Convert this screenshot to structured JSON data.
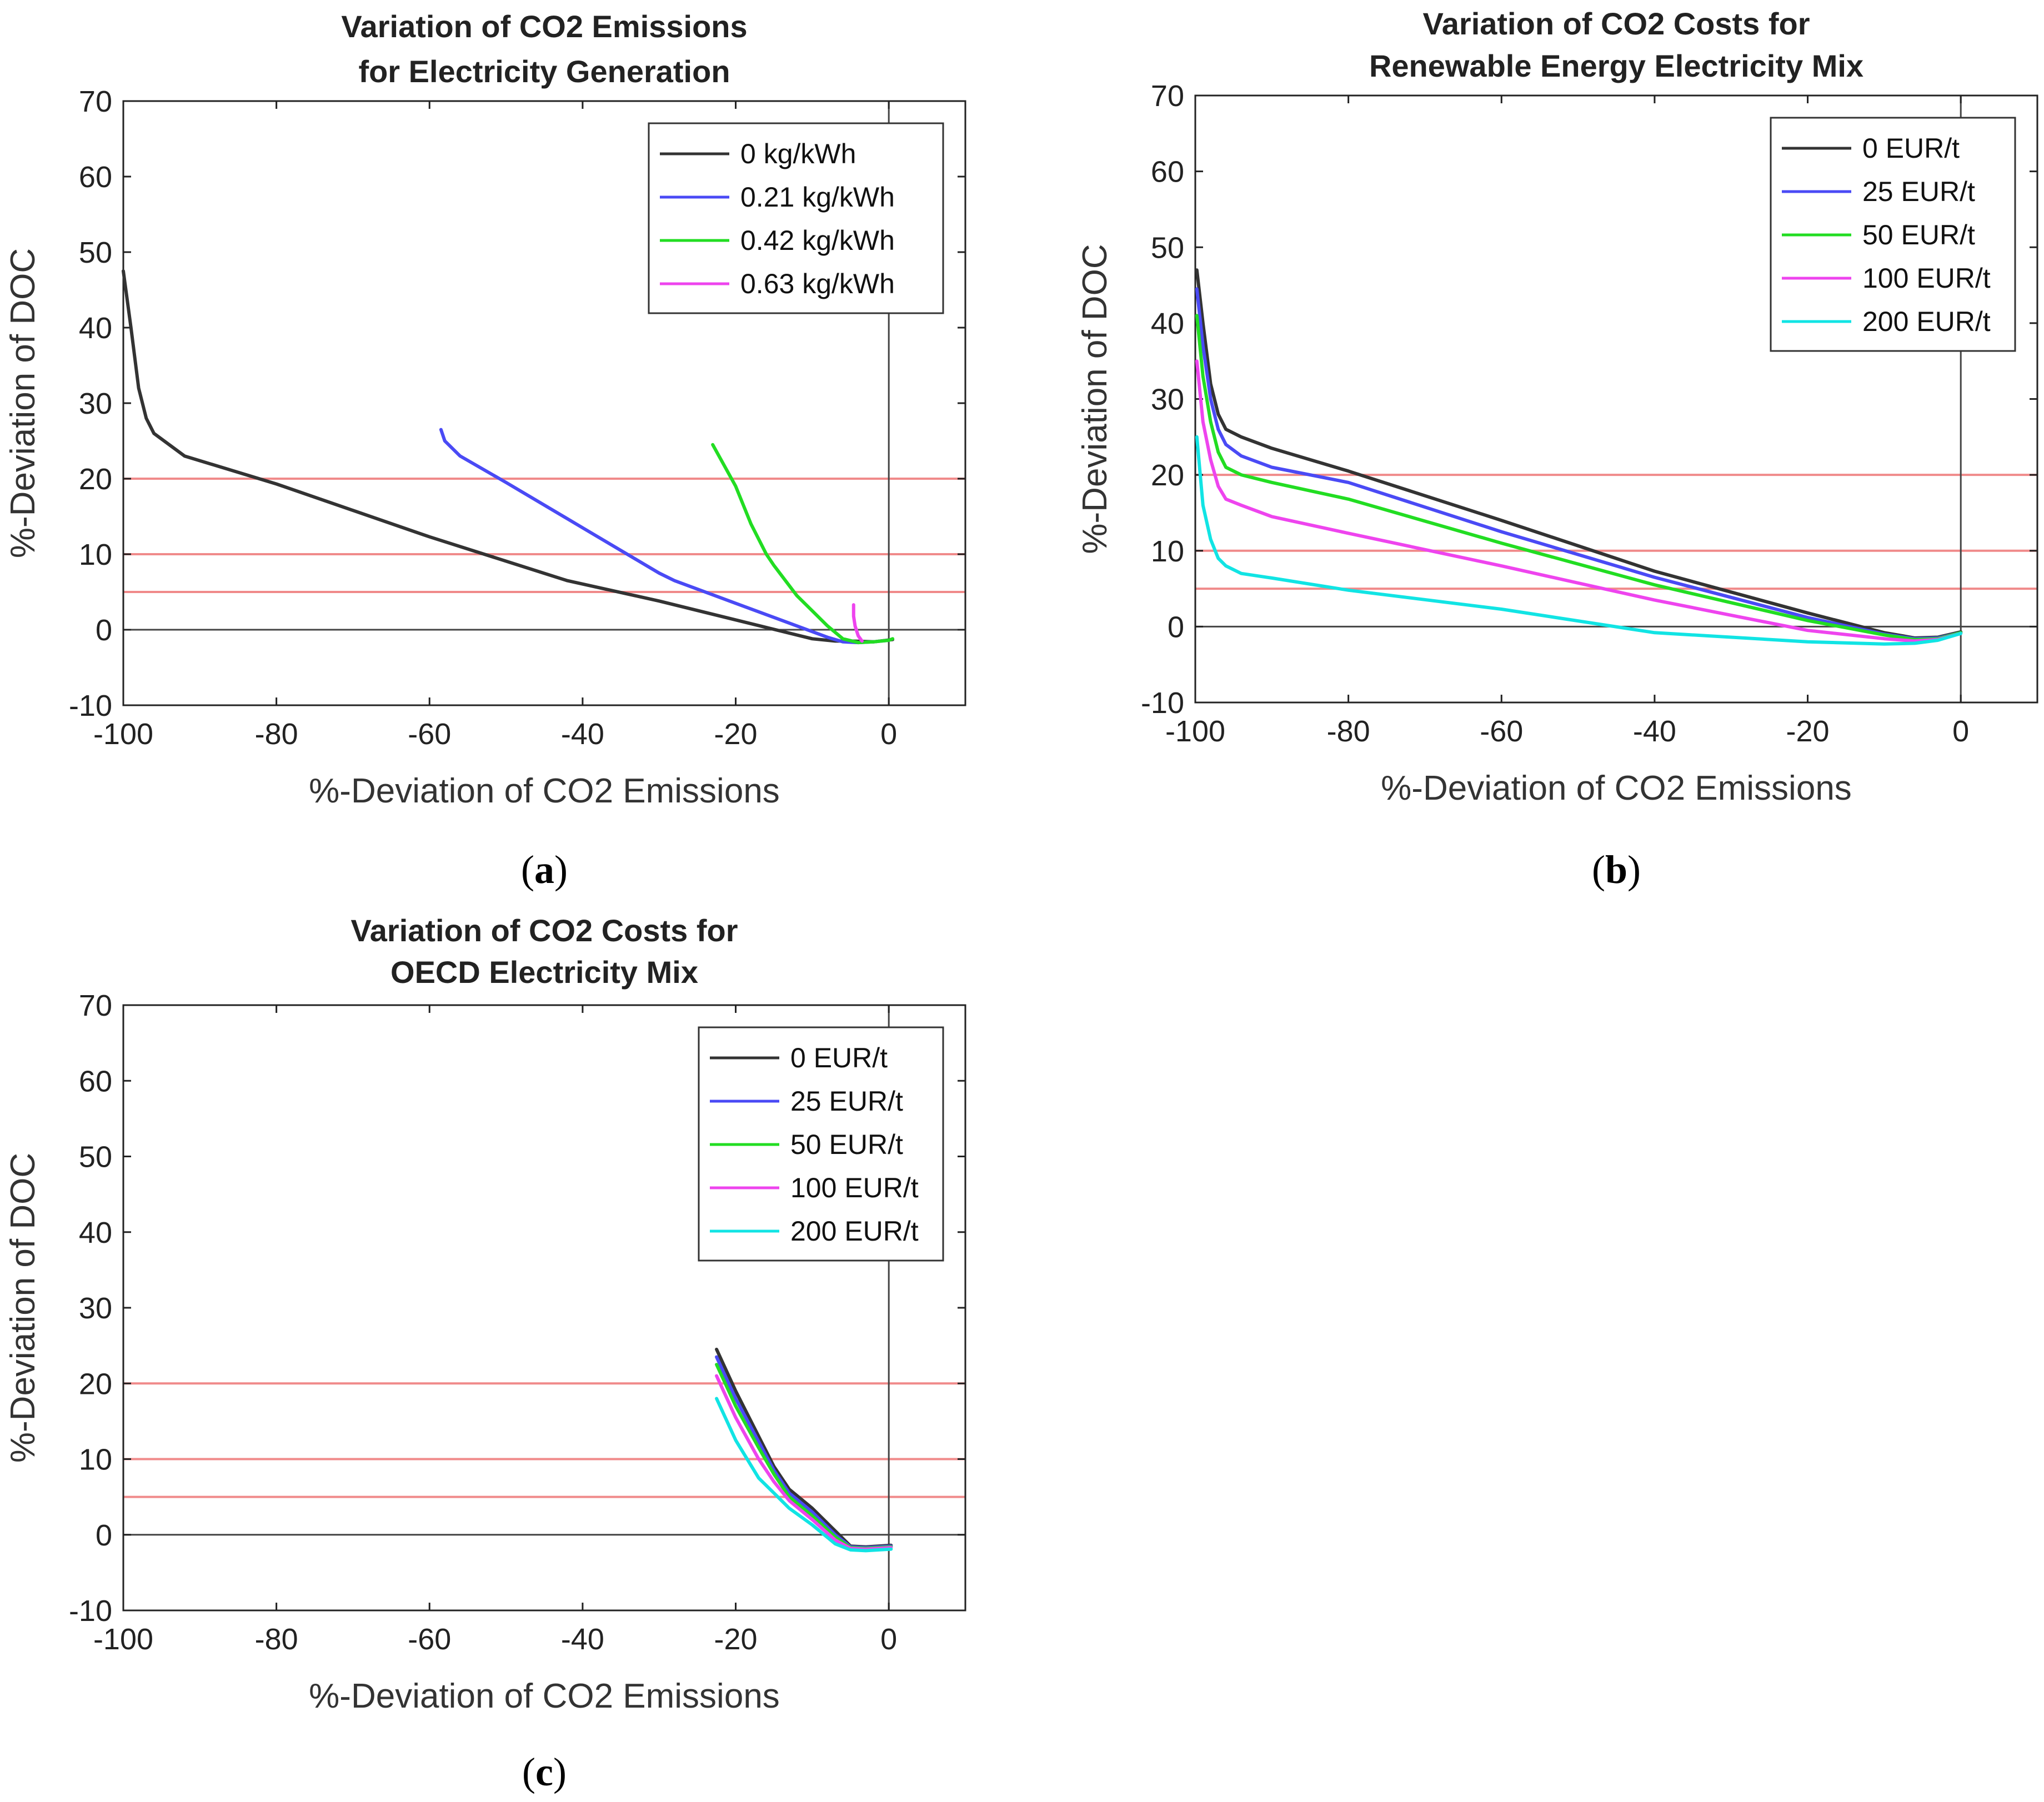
{
  "figure_labels": [
    "(a)",
    "(b)",
    "(c)"
  ],
  "colors": {
    "series": [
      "#333333",
      "#4a4af5",
      "#22dd22",
      "#ee44ee",
      "#11e4e4"
    ],
    "reference_lines": "#f08a8a",
    "axis": "#222222"
  },
  "chart_data": [
    {
      "id": "a",
      "type": "line",
      "caption": "(a)",
      "title": [
        "Variation of CO2 Emissions",
        "for Electricity Generation"
      ],
      "xlabel": "%-Deviation of CO2 Emissions",
      "ylabel": "%-Deviation of DOC",
      "xlim": [
        -100,
        10
      ],
      "ylim": [
        -10,
        70
      ],
      "xticks": [
        "-100",
        "-80",
        "-60",
        "-40",
        "-20",
        "0"
      ],
      "yticks": [
        "-10",
        "0",
        "10",
        "20",
        "30",
        "40",
        "50",
        "60",
        "70"
      ],
      "reference_lines_y": [
        5,
        10,
        20
      ],
      "zero_lines": {
        "x": 0,
        "y": 0
      },
      "legend_position": "top-right",
      "series": [
        {
          "name": "0 kg/kWh",
          "x": [
            -100,
            -99,
            -98,
            -97,
            -96,
            -92,
            -80,
            -60,
            -42,
            -30,
            -20,
            -10,
            -7,
            -5,
            -2,
            0.5
          ],
          "y": [
            47.5,
            40,
            32,
            28,
            26,
            23,
            19.3,
            12.3,
            6.5,
            3.8,
            1.3,
            -1.2,
            -1.5,
            -1.5,
            -1.6,
            -1.3
          ]
        },
        {
          "name": "0.21 kg/kWh",
          "x": [
            -58.5,
            -58,
            -57,
            -56,
            -50,
            -40,
            -30,
            -28,
            -20,
            -12,
            -8,
            -6,
            -4,
            -2,
            0
          ],
          "y": [
            26.5,
            25,
            24,
            23,
            19.5,
            13.5,
            7.5,
            6.5,
            3.5,
            0.5,
            -1,
            -1.6,
            -1.7,
            -1.6,
            -1.4
          ]
        },
        {
          "name": "0.42 kg/kWh",
          "x": [
            -23,
            -20,
            -18,
            -16,
            -15,
            -12,
            -10,
            -8,
            -6,
            -4,
            -2,
            -1,
            0,
            0.5
          ],
          "y": [
            24.5,
            19,
            14,
            10,
            8.5,
            4.5,
            2.5,
            0.5,
            -1.2,
            -1.7,
            -1.6,
            -1.5,
            -1.4,
            -1.2
          ]
        },
        {
          "name": "0.63 kg/kWh",
          "x": [
            -4.6,
            -4.6,
            -4.4,
            -4,
            -3.5
          ],
          "y": [
            3.3,
            1.8,
            0.5,
            -0.8,
            -1.5
          ]
        }
      ]
    },
    {
      "id": "b",
      "type": "line",
      "caption": "(b)",
      "title": [
        "Variation of CO2 Costs for",
        "Renewable Energy Electricity Mix"
      ],
      "xlabel": "%-Deviation of CO2 Emissions",
      "ylabel": "%-Deviation of DOC",
      "xlim": [
        -100,
        10
      ],
      "ylim": [
        -10,
        70
      ],
      "xticks": [
        "-100",
        "-80",
        "-60",
        "-40",
        "-20",
        "0"
      ],
      "yticks": [
        "-10",
        "0",
        "10",
        "20",
        "30",
        "40",
        "50",
        "60",
        "70"
      ],
      "reference_lines_y": [
        5,
        10,
        20
      ],
      "zero_lines": {
        "x": 0,
        "y": 0
      },
      "legend_position": "top-right",
      "series": [
        {
          "name": "0 EUR/t",
          "x": [
            -99.8,
            -99,
            -98,
            -97,
            -96,
            -94,
            -90,
            -80,
            -60,
            -40,
            -20,
            -10,
            -6,
            -3,
            0
          ],
          "y": [
            47,
            40,
            32,
            28,
            26,
            25,
            23.5,
            20.5,
            14,
            7.3,
            1.8,
            -0.8,
            -1.5,
            -1.4,
            -0.7
          ]
        },
        {
          "name": "25 EUR/t",
          "x": [
            -99.8,
            -99,
            -98,
            -97,
            -96,
            -94,
            -90,
            -80,
            -60,
            -40,
            -20,
            -10,
            -6,
            -3,
            0
          ],
          "y": [
            44.5,
            37,
            30,
            26,
            24,
            22.5,
            21,
            19,
            12.5,
            6.5,
            1.2,
            -1,
            -1.6,
            -1.5,
            -0.8
          ]
        },
        {
          "name": "50 EUR/t",
          "x": [
            -99.8,
            -99,
            -98,
            -97,
            -96,
            -94,
            -90,
            -80,
            -60,
            -40,
            -20,
            -10,
            -6,
            -3,
            0
          ],
          "y": [
            41,
            33,
            27,
            23,
            21,
            20,
            19,
            16.8,
            11,
            5.5,
            0.8,
            -1.1,
            -1.7,
            -1.6,
            -0.8
          ]
        },
        {
          "name": "100 EUR/t",
          "x": [
            -99.8,
            -99,
            -98,
            -97,
            -96,
            -94,
            -90,
            -80,
            -60,
            -40,
            -20,
            -10,
            -6,
            -3,
            0
          ],
          "y": [
            35,
            27,
            22,
            18.5,
            16.8,
            16,
            14.5,
            12.3,
            8,
            3.5,
            -0.5,
            -1.6,
            -1.9,
            -1.7,
            -0.9
          ]
        },
        {
          "name": "200 EUR/t",
          "x": [
            -99.8,
            -99,
            -98,
            -97,
            -96,
            -94,
            -90,
            -80,
            -60,
            -40,
            -20,
            -10,
            -6,
            -3,
            0
          ],
          "y": [
            25,
            16,
            11.5,
            9,
            8,
            7,
            6.4,
            4.8,
            2.3,
            -0.8,
            -2,
            -2.3,
            -2.2,
            -1.8,
            -0.9
          ]
        }
      ]
    },
    {
      "id": "c",
      "type": "line",
      "caption": "(c)",
      "title": [
        "Variation of CO2 Costs for",
        "OECD Electricity Mix"
      ],
      "xlabel": "%-Deviation of CO2 Emissions",
      "ylabel": "%-Deviation of DOC",
      "xlim": [
        -100,
        10
      ],
      "ylim": [
        -10,
        70
      ],
      "xticks": [
        "-100",
        "-80",
        "-60",
        "-40",
        "-20",
        "0"
      ],
      "yticks": [
        "-10",
        "0",
        "10",
        "20",
        "30",
        "40",
        "50",
        "60",
        "70"
      ],
      "reference_lines_y": [
        5,
        10,
        20
      ],
      "zero_lines": {
        "x": 0,
        "y": 0
      },
      "legend_position": "top-right",
      "series": [
        {
          "name": "0 EUR/t",
          "x": [
            -22.5,
            -20,
            -17,
            -15,
            -13,
            -10,
            -7,
            -5,
            -3,
            0.3
          ],
          "y": [
            24.5,
            19,
            13,
            9,
            6,
            3.5,
            0.5,
            -1.5,
            -1.6,
            -1.4
          ]
        },
        {
          "name": "25 EUR/t",
          "x": [
            -22.5,
            -20,
            -17,
            -15,
            -13,
            -10,
            -7,
            -5,
            -3,
            0.3
          ],
          "y": [
            23.5,
            18,
            12.3,
            8.5,
            5.5,
            3,
            0,
            -1.6,
            -1.7,
            -1.5
          ]
        },
        {
          "name": "50 EUR/t",
          "x": [
            -22.5,
            -20,
            -17,
            -15,
            -13,
            -10,
            -7,
            -5,
            -3,
            0.3
          ],
          "y": [
            22.5,
            17,
            11.5,
            8,
            5,
            2.5,
            -0.3,
            -1.7,
            -1.8,
            -1.6
          ]
        },
        {
          "name": "100 EUR/t",
          "x": [
            -22.5,
            -20,
            -17,
            -15,
            -13,
            -10,
            -7,
            -5,
            -3,
            0.3
          ],
          "y": [
            21,
            15.5,
            10,
            7,
            4.5,
            2,
            -0.7,
            -1.8,
            -1.9,
            -1.7
          ]
        },
        {
          "name": "200 EUR/t",
          "x": [
            -22.5,
            -20,
            -17,
            -15,
            -13,
            -10,
            -7,
            -5,
            -3,
            0.3
          ],
          "y": [
            18,
            12.5,
            7.5,
            5.5,
            3.5,
            1.3,
            -1.2,
            -2,
            -2.1,
            -1.9
          ]
        }
      ]
    }
  ]
}
